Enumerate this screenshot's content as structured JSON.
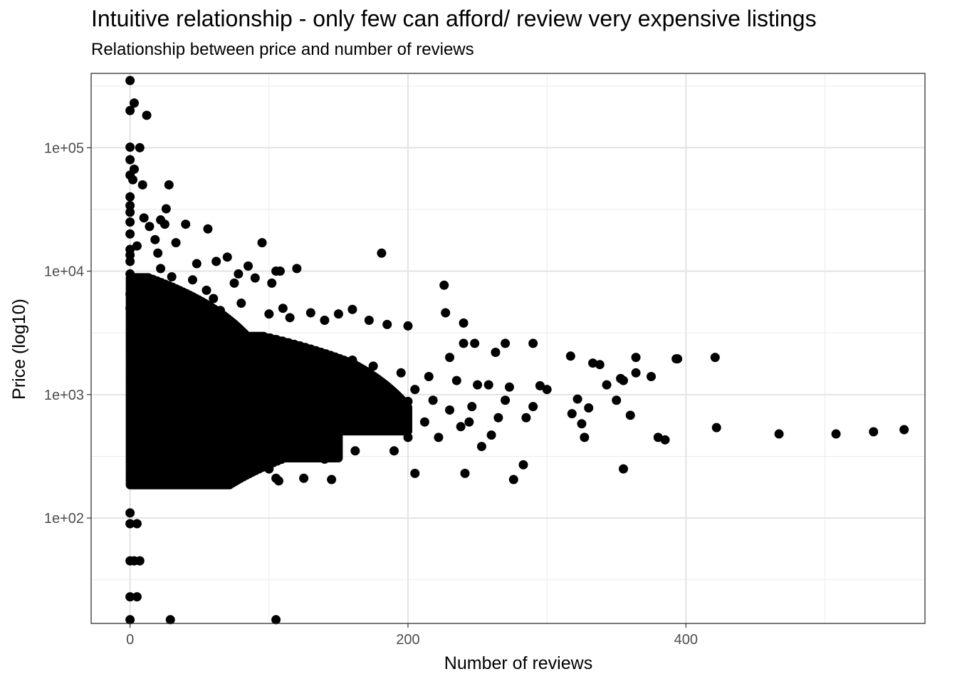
{
  "chart_data": {
    "type": "scatter",
    "title": "Intuitive relationship - only few can afford/ review very expensive listings",
    "subtitle": "Relationship between price and number of reviews",
    "xlabel": "Number of reviews",
    "ylabel": "Price (log10)",
    "xlim": [
      -28,
      572
    ],
    "ylim": [
      14,
      400000
    ],
    "y_scale": "log10",
    "grid": true,
    "x_ticks": [
      {
        "value": 0,
        "label": "0"
      },
      {
        "value": 200,
        "label": "200"
      },
      {
        "value": 400,
        "label": "400"
      }
    ],
    "y_ticks": [
      {
        "value": 100,
        "label": "1e+02"
      },
      {
        "value": 1000,
        "label": "1e+03"
      },
      {
        "value": 10000,
        "label": "1e+04"
      },
      {
        "value": 100000,
        "label": "1e+05"
      }
    ],
    "point_color": "#000000",
    "points": [
      [
        0,
        350000
      ],
      [
        0,
        200000
      ],
      [
        3,
        230000
      ],
      [
        12,
        183000
      ],
      [
        0,
        101000
      ],
      [
        7,
        100000
      ],
      [
        0,
        80000
      ],
      [
        3,
        67000
      ],
      [
        0,
        60000
      ],
      [
        2,
        55000
      ],
      [
        9,
        50000
      ],
      [
        28,
        50000
      ],
      [
        0,
        40000
      ],
      [
        0,
        34000
      ],
      [
        26,
        32000
      ],
      [
        0,
        30000
      ],
      [
        10,
        27000
      ],
      [
        22,
        26000
      ],
      [
        0,
        25000
      ],
      [
        25,
        24000
      ],
      [
        40,
        24000
      ],
      [
        14,
        23000
      ],
      [
        56,
        22000
      ],
      [
        0,
        20000
      ],
      [
        18,
        18000
      ],
      [
        95,
        17000
      ],
      [
        5,
        16000
      ],
      [
        33,
        17000
      ],
      [
        0,
        15000
      ],
      [
        20,
        14000
      ],
      [
        70,
        13000
      ],
      [
        181,
        14000
      ],
      [
        0,
        13500
      ],
      [
        62,
        12000
      ],
      [
        0,
        12000
      ],
      [
        48,
        11500
      ],
      [
        85,
        11000
      ],
      [
        120,
        10500
      ],
      [
        105,
        10000
      ],
      [
        108,
        10000
      ],
      [
        0,
        9500
      ],
      [
        22,
        10500
      ],
      [
        78,
        9500
      ],
      [
        30,
        9000
      ],
      [
        75,
        8000
      ],
      [
        102,
        8000
      ],
      [
        226,
        7700
      ],
      [
        45,
        8500
      ],
      [
        90,
        8800
      ],
      [
        12,
        7000
      ],
      [
        55,
        7000
      ],
      [
        0,
        6500
      ],
      [
        60,
        6000
      ],
      [
        35,
        6000
      ],
      [
        80,
        5500
      ],
      [
        110,
        5000
      ],
      [
        227,
        4600
      ],
      [
        160,
        4900
      ],
      [
        130,
        4600
      ],
      [
        150,
        4500
      ],
      [
        0,
        5000
      ],
      [
        240,
        3800
      ],
      [
        172,
        4000
      ],
      [
        200,
        3600
      ],
      [
        185,
        3700
      ],
      [
        100,
        4500
      ],
      [
        140,
        4000
      ],
      [
        115,
        4200
      ],
      [
        65,
        4800
      ],
      [
        270,
        2600
      ],
      [
        290,
        2600
      ],
      [
        263,
        2200
      ],
      [
        240,
        2600
      ],
      [
        248,
        2600
      ],
      [
        230,
        2000
      ],
      [
        317,
        2050
      ],
      [
        333,
        1800
      ],
      [
        338,
        1750
      ],
      [
        364,
        2000
      ],
      [
        393,
        1950
      ],
      [
        394,
        1950
      ],
      [
        421,
        2000
      ],
      [
        343,
        1200
      ],
      [
        353,
        1350
      ],
      [
        355,
        1300
      ],
      [
        364,
        1500
      ],
      [
        375,
        1400
      ],
      [
        350,
        900
      ],
      [
        360,
        680
      ],
      [
        380,
        450
      ],
      [
        385,
        430
      ],
      [
        422,
        540
      ],
      [
        467,
        480
      ],
      [
        508,
        480
      ],
      [
        535,
        500
      ],
      [
        557,
        520
      ],
      [
        355,
        250
      ],
      [
        327,
        450
      ],
      [
        318,
        700
      ],
      [
        322,
        920
      ],
      [
        325,
        580
      ],
      [
        330,
        780
      ],
      [
        300,
        1100
      ],
      [
        295,
        1180
      ],
      [
        290,
        800
      ],
      [
        285,
        650
      ],
      [
        283,
        270
      ],
      [
        276,
        205
      ],
      [
        273,
        1150
      ],
      [
        270,
        900
      ],
      [
        265,
        650
      ],
      [
        260,
        470
      ],
      [
        258,
        1200
      ],
      [
        253,
        380
      ],
      [
        250,
        1200
      ],
      [
        246,
        800
      ],
      [
        244,
        600
      ],
      [
        241,
        230
      ],
      [
        238,
        550
      ],
      [
        235,
        1300
      ],
      [
        230,
        750
      ],
      [
        222,
        450
      ],
      [
        218,
        900
      ],
      [
        215,
        1400
      ],
      [
        212,
        600
      ],
      [
        205,
        1100
      ],
      [
        205,
        230
      ],
      [
        200,
        880
      ],
      [
        200,
        450
      ],
      [
        195,
        1500
      ],
      [
        192,
        690
      ],
      [
        190,
        350
      ],
      [
        185,
        1100
      ],
      [
        180,
        760
      ],
      [
        178,
        540
      ],
      [
        175,
        1700
      ],
      [
        170,
        1300
      ],
      [
        168,
        600
      ],
      [
        165,
        1000
      ],
      [
        162,
        350
      ],
      [
        160,
        1900
      ],
      [
        155,
        780
      ],
      [
        150,
        500
      ],
      [
        145,
        1300
      ],
      [
        142,
        1000
      ],
      [
        140,
        300
      ],
      [
        135,
        1500
      ],
      [
        130,
        600
      ],
      [
        125,
        800
      ],
      [
        120,
        400
      ],
      [
        115,
        1200
      ],
      [
        110,
        550
      ],
      [
        107,
        200
      ],
      [
        105,
        210
      ],
      [
        145,
        205
      ],
      [
        125,
        210
      ],
      [
        100,
        250
      ],
      [
        95,
        1700
      ],
      [
        95,
        320
      ],
      [
        90,
        900
      ],
      [
        85,
        600
      ],
      [
        80,
        1400
      ],
      [
        75,
        450
      ],
      [
        70,
        1100
      ],
      [
        65,
        250
      ],
      [
        60,
        700
      ],
      [
        55,
        1800
      ],
      [
        50,
        500
      ],
      [
        45,
        1000
      ],
      [
        40,
        230
      ],
      [
        35,
        650
      ],
      [
        30,
        1300
      ],
      [
        25,
        350
      ],
      [
        20,
        900
      ],
      [
        15,
        200
      ],
      [
        10,
        1500
      ],
      [
        5,
        300
      ],
      [
        2,
        800
      ],
      [
        0,
        110
      ],
      [
        0,
        90
      ],
      [
        5,
        90
      ],
      [
        0,
        45
      ],
      [
        3,
        45
      ],
      [
        7,
        45
      ],
      [
        0,
        23
      ],
      [
        5,
        23
      ],
      [
        0,
        15
      ],
      [
        29,
        15
      ],
      [
        105,
        15
      ]
    ]
  }
}
